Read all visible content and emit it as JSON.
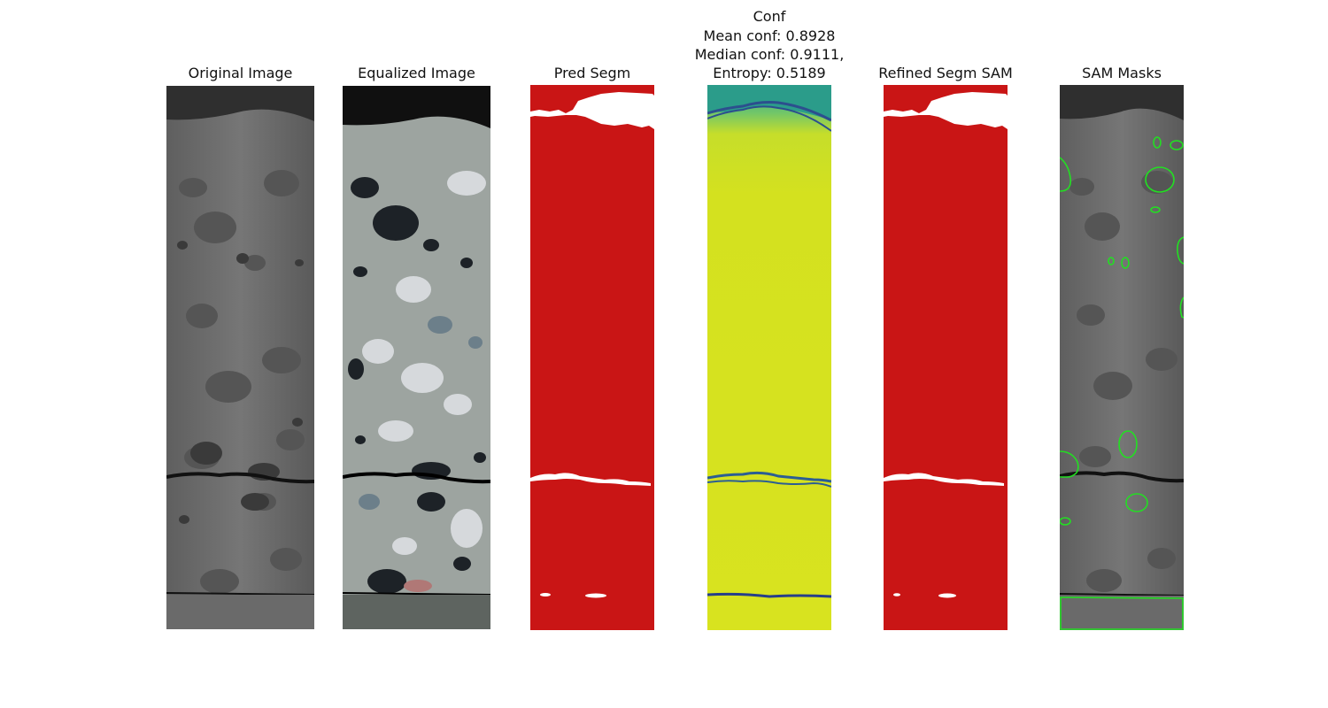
{
  "titles": {
    "original": "Original Image",
    "equalized": "Equalized Image",
    "pred": "Pred Segm",
    "conf_line1": "Conf",
    "conf_line2": "Mean conf: 0.8928",
    "conf_line3": "Median conf: 0.9111,",
    "conf_line4": "Entropy: 0.5189",
    "refined": "Refined Segm SAM",
    "sam": "SAM Masks"
  },
  "colors": {
    "segm_red": "#c91515",
    "segm_white": "#ffffff",
    "conf_yellow": "#d4e11f",
    "conf_blue": "#2b5c8f",
    "sam_outline": "#22e022",
    "rock_gray": "#6d6d6d"
  }
}
